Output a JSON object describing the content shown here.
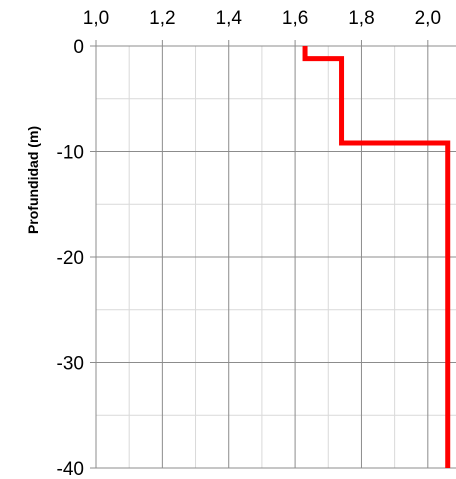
{
  "chart_data": {
    "type": "line",
    "title": "",
    "xlabel": "",
    "ylabel": "Profundidad (m)",
    "x_axis_position": "top",
    "xlim": [
      1.0,
      2.1
    ],
    "ylim": [
      -40,
      0
    ],
    "x_major_ticks": [
      1.0,
      1.2,
      1.4,
      1.6,
      1.8,
      2.0
    ],
    "x_tick_labels": [
      "1,0",
      "1,2",
      "1,4",
      "1,6",
      "1,8",
      "2,0"
    ],
    "x_minor_ticks": [
      1.1,
      1.3,
      1.5,
      1.7,
      1.9,
      2.1
    ],
    "y_major_ticks": [
      0,
      -10,
      -20,
      -30,
      -40
    ],
    "y_tick_labels": [
      "0",
      "-10",
      "-20",
      "-30",
      "-40"
    ],
    "y_minor_ticks": [
      -5,
      -15,
      -25,
      -35
    ],
    "grid": true,
    "legend": "none",
    "colors": {
      "series": "#ff0000",
      "major_grid": "#8c8c8c",
      "minor_grid": "#d9d9d9"
    },
    "series": [
      {
        "x": [
          1.63,
          1.63,
          1.74,
          1.74,
          2.06,
          2.06
        ],
        "y": [
          0,
          -1.2,
          -1.2,
          -9.2,
          -9.2,
          -40
        ]
      }
    ]
  }
}
